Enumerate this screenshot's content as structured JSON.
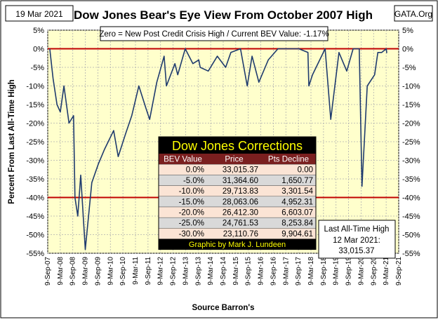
{
  "header": {
    "date": "19 Mar 2021",
    "title": "Dow Jones Bear's Eye View From October 2007 High",
    "source_site": "GATA.Org"
  },
  "note": "Zero = New Post Credit Crisis High / Current BEV Value:  -1.17%",
  "ylabel": "Percent From Last All-Time High",
  "xlabel": "Source Barron's",
  "colors": {
    "plot_bg": "#ffffcc",
    "series": "#1f3b6e",
    "ref_line": "#c00000",
    "grid": "#b0b0b0",
    "table_header_bg": "#000000",
    "table_title": "#ffff00",
    "table_head_row": "#7a1f1f",
    "row_light": "#fbe4d5",
    "row_gray": "#d9d9d9"
  },
  "table": {
    "title": "Dow Jones Corrections",
    "columns": [
      "BEV Value",
      "Price",
      "Pts Decline"
    ],
    "rows": [
      [
        "0.0%",
        "33,015.37",
        "0.00"
      ],
      [
        "-5.0%",
        "31,364.60",
        "1,650.77"
      ],
      [
        "-10.0%",
        "29,713.83",
        "3,301.54"
      ],
      [
        "-15.0%",
        "28,063.06",
        "4,952.31"
      ],
      [
        "-20.0%",
        "26,412.30",
        "6,603.07"
      ],
      [
        "-25.0%",
        "24,761.53",
        "8,253.84"
      ],
      [
        "-30.0%",
        "23,110.76",
        "9,904.61"
      ]
    ],
    "footer": "Graphic by Mark J. Lundeen"
  },
  "info_box": {
    "line1": "Last All-Time High",
    "line2": "12 Mar 2021:",
    "line3": "33,015.37"
  },
  "chart_data": {
    "type": "line",
    "title": "Dow Jones Bear's Eye View From October 2007 High",
    "xlabel": "Source Barron's",
    "ylabel": "Percent From Last All-Time High",
    "ylim": [
      -55,
      5
    ],
    "xlim": [
      "2007-09-09",
      "2021-09-09"
    ],
    "y_ticks": [
      5,
      0,
      -5,
      -10,
      -15,
      -20,
      -25,
      -30,
      -35,
      -40,
      -45,
      -50,
      -55
    ],
    "y_tick_labels": [
      "5%",
      "0%",
      "-5%",
      "-10%",
      "-15%",
      "-20%",
      "-25%",
      "-30%",
      "-35%",
      "-40%",
      "-45%",
      "-50%",
      "-55%"
    ],
    "x_tick_labels": [
      "9-Sep-07",
      "9-Mar-08",
      "9-Sep-08",
      "9-Mar-09",
      "9-Sep-09",
      "9-Mar-10",
      "9-Sep-10",
      "9-Mar-11",
      "9-Sep-11",
      "9-Mar-12",
      "9-Sep-12",
      "9-Mar-13",
      "9-Sep-13",
      "9-Mar-14",
      "9-Sep-14",
      "9-Mar-15",
      "9-Sep-15",
      "9-Mar-16",
      "9-Sep-16",
      "9-Mar-17",
      "9-Sep-17",
      "9-Mar-18",
      "9-Sep-18",
      "9-Mar-19",
      "9-Sep-19",
      "9-Mar-20",
      "9-Sep-20",
      "9-Mar-21",
      "9-Sep-21"
    ],
    "reference_lines": [
      0,
      -40
    ],
    "grid": true,
    "series": [
      {
        "x": [
          "2007-10-09",
          "2007-11-26",
          "2008-01-22",
          "2008-03-10",
          "2008-05-02",
          "2008-07-15",
          "2008-09-19",
          "2008-10-10",
          "2008-11-20",
          "2009-01-02",
          "2009-03-09",
          "2009-06-12",
          "2009-09-15",
          "2009-12-15",
          "2010-04-26",
          "2010-07-02",
          "2010-10-15",
          "2011-01-15",
          "2011-04-29",
          "2011-08-10",
          "2011-10-03",
          "2012-01-15",
          "2012-05-01",
          "2012-06-04",
          "2012-10-05",
          "2012-11-15",
          "2013-03-05",
          "2013-06-24",
          "2013-09-18",
          "2013-10-09",
          "2014-02-03",
          "2014-06-15",
          "2014-10-15",
          "2014-12-29",
          "2015-05-19",
          "2015-08-25",
          "2015-11-03",
          "2016-02-11",
          "2016-06-27",
          "2016-11-15",
          "2017-03-01",
          "2017-09-15",
          "2018-01-26",
          "2018-02-08",
          "2018-04-02",
          "2018-10-03",
          "2018-12-24",
          "2019-04-23",
          "2019-08-14",
          "2019-11-15",
          "2020-02-12",
          "2020-03-23",
          "2020-06-08",
          "2020-09-23",
          "2020-11-09",
          "2021-01-04",
          "2021-03-12",
          "2021-03-19"
        ],
        "values": [
          0,
          -8,
          -15,
          -17,
          -10,
          -20,
          -18,
          -40,
          -45,
          -34,
          -54,
          -36,
          -31,
          -27,
          -22,
          -29,
          -23,
          -18,
          -10,
          -16,
          -19,
          -9,
          -2,
          -10,
          -4,
          -7,
          0,
          -4,
          -3,
          -5,
          -6,
          -2,
          -5,
          -1,
          0,
          -10,
          -2,
          -9,
          -3,
          0,
          0,
          0,
          -1,
          -10,
          -7,
          0,
          -19,
          -1,
          -6,
          0,
          0,
          -37,
          -10,
          -7,
          -1,
          -1,
          0,
          -1.17
        ]
      }
    ]
  }
}
